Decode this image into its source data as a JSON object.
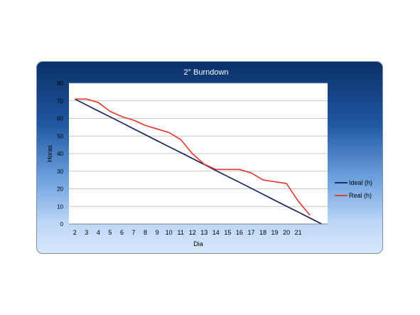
{
  "chart_data": {
    "type": "line",
    "title": "2° Burndown",
    "xlabel": "Dia",
    "ylabel": "Horas",
    "ylim": [
      0,
      80
    ],
    "yticks": [
      0,
      10,
      20,
      30,
      40,
      50,
      60,
      70,
      80
    ],
    "categories": [
      "2",
      "3",
      "4",
      "5",
      "6",
      "7",
      "8",
      "9",
      "10",
      "11",
      "12",
      "13",
      "14",
      "15",
      "16",
      "17",
      "18",
      "19",
      "20",
      "21",
      "",
      ""
    ],
    "grid": true,
    "legend_position": "right",
    "series": [
      {
        "name": "Ideal (h)",
        "color": "#0b1f5c",
        "values": [
          71,
          67.6,
          64.2,
          60.9,
          57.5,
          54.1,
          50.7,
          47.3,
          43.9,
          40.6,
          37.2,
          33.8,
          30.4,
          27,
          23.7,
          20.3,
          16.9,
          13.5,
          10.1,
          6.8,
          3.4,
          0
        ]
      },
      {
        "name": "Real (h)",
        "color": "#e8352b",
        "values": [
          71,
          71,
          69,
          64,
          61,
          59,
          56,
          54,
          52,
          48,
          40,
          34,
          31,
          31,
          31,
          29,
          25,
          24,
          23,
          13,
          5,
          null
        ]
      }
    ]
  }
}
